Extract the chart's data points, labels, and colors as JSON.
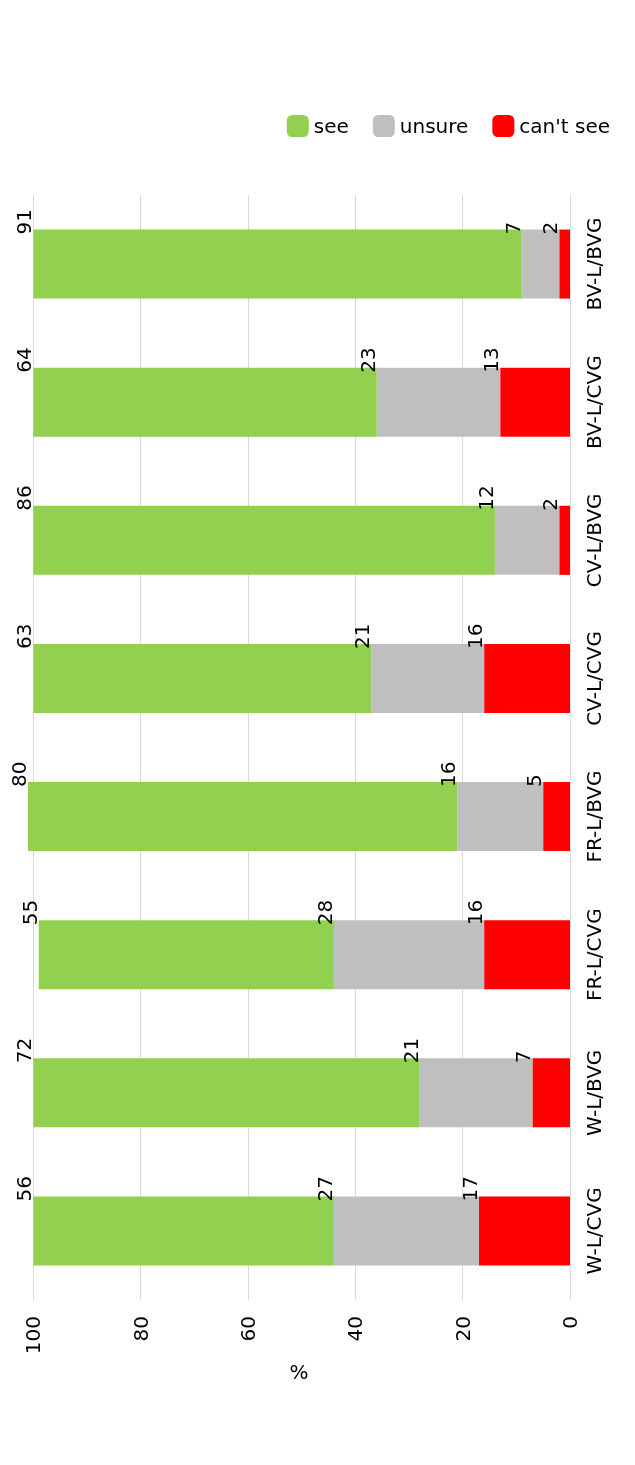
{
  "chart_data": {
    "type": "bar",
    "stacked": true,
    "orientation": "horizontal",
    "xlabel": "%",
    "categories": [
      "BV-L/BVG",
      "BV-L/CVG",
      "CV-L/BVG",
      "CV-L/CVG",
      "FR-L/BVG",
      "FR-L/CVG",
      "W-L/BVG",
      "W-L/CVG"
    ],
    "series": [
      {
        "name": "can't see",
        "color": "#ff0000",
        "values": [
          2,
          13,
          2,
          16,
          5,
          16,
          7,
          17
        ]
      },
      {
        "name": "unsure",
        "color": "#bfbfbf",
        "values": [
          7,
          23,
          12,
          21,
          16,
          28,
          21,
          27
        ]
      },
      {
        "name": "see",
        "color": "#92d050",
        "values": [
          91,
          64,
          86,
          63,
          80,
          55,
          72,
          56
        ]
      }
    ],
    "xlim": [
      101,
      0
    ],
    "xticks": [
      0,
      20,
      40,
      60,
      80,
      100
    ],
    "grid": "x",
    "legend": "top right",
    "data_labels": true
  }
}
